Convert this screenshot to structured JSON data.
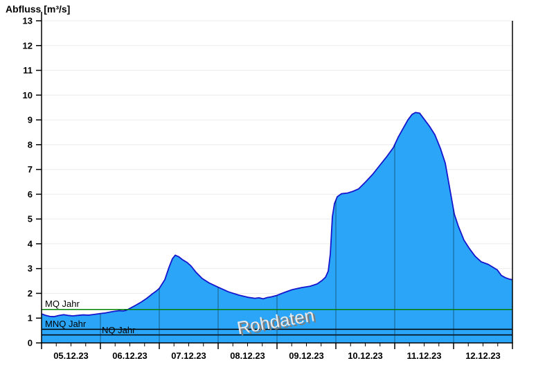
{
  "page": {
    "background_color": "#ffffff"
  },
  "chart_data": {
    "type": "area",
    "title": "Abfluss [m³/s]",
    "watermark": "Rohdaten",
    "xlabel": "",
    "ylabel": "Abfluss [m³/s]",
    "x_categories": [
      "05.12.23",
      "06.12.23",
      "07.12.23",
      "08.12.23",
      "09.12.23",
      "10.12.23",
      "11.12.23",
      "12.12.23"
    ],
    "x_axis_days_total": 8,
    "x_minor_ticks_per_day": 4,
    "ylim": [
      0,
      13
    ],
    "y_tick_step": 1,
    "grid": {
      "horizontal": true,
      "vertical_day_lines_inside_area": true
    },
    "legend_position": "none",
    "colors": {
      "area_fill": "#2aa5f7",
      "area_line": "#1515cd",
      "mq_line": "#008000",
      "mnq_line": "#000000",
      "nq_line": "#000000",
      "horizontal_grid": "#ebebeb"
    },
    "reference_lines": [
      {
        "label": "MQ Jahr",
        "value": 1.35,
        "color": "#008000"
      },
      {
        "label": "MNQ Jahr",
        "value": 0.55,
        "color": "#000000"
      },
      {
        "label": "NQ Jahr",
        "value": 0.32,
        "color": "#000000"
      }
    ],
    "series": [
      {
        "name": "Abfluss Rohdaten",
        "unit": "m³/s",
        "x_unit": "days since 05.12.23 00:00",
        "points": [
          [
            0.0,
            1.17
          ],
          [
            0.071,
            1.11
          ],
          [
            0.141,
            1.07
          ],
          [
            0.212,
            1.06
          ],
          [
            0.282,
            1.1
          ],
          [
            0.376,
            1.14
          ],
          [
            0.447,
            1.11
          ],
          [
            0.529,
            1.09
          ],
          [
            0.612,
            1.11
          ],
          [
            0.706,
            1.13
          ],
          [
            0.8,
            1.12
          ],
          [
            0.894,
            1.15
          ],
          [
            0.988,
            1.18
          ],
          [
            1.082,
            1.21
          ],
          [
            1.176,
            1.25
          ],
          [
            1.247,
            1.28
          ],
          [
            1.318,
            1.3
          ],
          [
            1.388,
            1.29
          ],
          [
            1.435,
            1.31
          ],
          [
            1.506,
            1.4
          ],
          [
            1.6,
            1.52
          ],
          [
            1.694,
            1.65
          ],
          [
            1.788,
            1.8
          ],
          [
            1.882,
            1.98
          ],
          [
            1.953,
            2.1
          ],
          [
            2.0,
            2.2
          ],
          [
            2.094,
            2.55
          ],
          [
            2.165,
            3.05
          ],
          [
            2.224,
            3.4
          ],
          [
            2.271,
            3.54
          ],
          [
            2.329,
            3.48
          ],
          [
            2.4,
            3.35
          ],
          [
            2.471,
            3.25
          ],
          [
            2.541,
            3.1
          ],
          [
            2.624,
            2.85
          ],
          [
            2.729,
            2.6
          ],
          [
            2.847,
            2.42
          ],
          [
            3.0,
            2.25
          ],
          [
            3.176,
            2.06
          ],
          [
            3.353,
            1.93
          ],
          [
            3.506,
            1.84
          ],
          [
            3.624,
            1.8
          ],
          [
            3.694,
            1.82
          ],
          [
            3.765,
            1.78
          ],
          [
            3.835,
            1.83
          ],
          [
            3.906,
            1.86
          ],
          [
            4.0,
            1.92
          ],
          [
            4.118,
            2.03
          ],
          [
            4.259,
            2.15
          ],
          [
            4.412,
            2.23
          ],
          [
            4.565,
            2.29
          ],
          [
            4.682,
            2.38
          ],
          [
            4.765,
            2.52
          ],
          [
            4.824,
            2.65
          ],
          [
            4.871,
            2.9
          ],
          [
            4.906,
            3.6
          ],
          [
            4.941,
            5.1
          ],
          [
            4.976,
            5.62
          ],
          [
            5.024,
            5.9
          ],
          [
            5.094,
            6.02
          ],
          [
            5.2,
            6.05
          ],
          [
            5.294,
            6.12
          ],
          [
            5.388,
            6.22
          ],
          [
            5.506,
            6.5
          ],
          [
            5.624,
            6.8
          ],
          [
            5.741,
            7.15
          ],
          [
            5.859,
            7.5
          ],
          [
            5.976,
            7.88
          ],
          [
            6.059,
            8.3
          ],
          [
            6.141,
            8.65
          ],
          [
            6.224,
            9.0
          ],
          [
            6.294,
            9.22
          ],
          [
            6.353,
            9.3
          ],
          [
            6.424,
            9.27
          ],
          [
            6.494,
            9.05
          ],
          [
            6.588,
            8.75
          ],
          [
            6.682,
            8.4
          ],
          [
            6.776,
            7.85
          ],
          [
            6.859,
            7.25
          ],
          [
            6.941,
            6.15
          ],
          [
            7.012,
            5.2
          ],
          [
            7.082,
            4.7
          ],
          [
            7.176,
            4.15
          ],
          [
            7.271,
            3.8
          ],
          [
            7.365,
            3.5
          ],
          [
            7.471,
            3.27
          ],
          [
            7.588,
            3.17
          ],
          [
            7.671,
            3.05
          ],
          [
            7.741,
            2.95
          ],
          [
            7.812,
            2.72
          ],
          [
            7.882,
            2.63
          ],
          [
            7.953,
            2.57
          ],
          [
            8.0,
            2.55
          ]
        ]
      }
    ]
  }
}
